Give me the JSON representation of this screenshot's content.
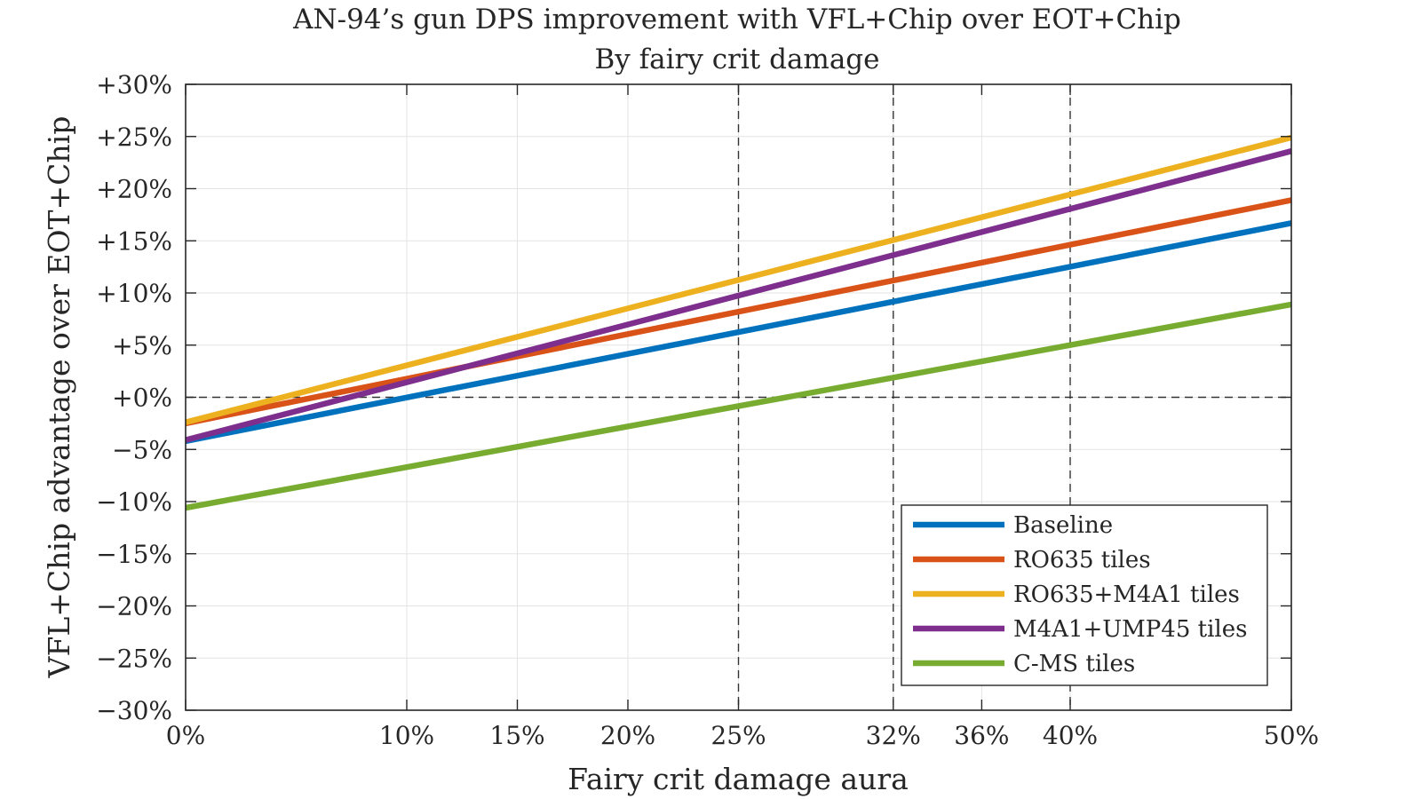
{
  "chart_data": {
    "type": "line",
    "title": "AN-94’s gun DPS improvement with VFL+Chip over EOT+Chip",
    "subtitle": "By fairy crit damage",
    "xlabel": "Fairy crit damage aura",
    "ylabel": "VFL+Chip advantage over EOT+Chip",
    "xlim": [
      0,
      50
    ],
    "ylim": [
      -30,
      30
    ],
    "x_ticks": [
      0,
      10,
      15,
      20,
      25,
      32,
      36,
      40,
      50
    ],
    "x_tick_labels": [
      "0%",
      "10%",
      "15%",
      "20%",
      "25%",
      "32%",
      "36%",
      "40%",
      "50%"
    ],
    "y_ticks": [
      30,
      25,
      20,
      15,
      10,
      5,
      0,
      -5,
      -10,
      -15,
      -20,
      -25,
      -30
    ],
    "y_tick_labels": [
      "+30%",
      "+25%",
      "+20%",
      "+15%",
      "+10%",
      "+5%",
      "+0%",
      "−5%",
      "−10%",
      "−15%",
      "−20%",
      "−25%",
      "−30%"
    ],
    "reference_lines": {
      "x": [
        25,
        32,
        40
      ],
      "y": [
        0
      ]
    },
    "grid": true,
    "legend_position": "bottom-right",
    "series": [
      {
        "name": "Baseline",
        "color": "#0072BD",
        "x": [
          0,
          50
        ],
        "y": [
          -4.2,
          16.7
        ]
      },
      {
        "name": "RO635 tiles",
        "color": "#D95319",
        "x": [
          0,
          50
        ],
        "y": [
          -2.5,
          18.9
        ]
      },
      {
        "name": "RO635+M4A1 tiles",
        "color": "#EDB120",
        "x": [
          0,
          50
        ],
        "y": [
          -2.4,
          24.9
        ]
      },
      {
        "name": "M4A1+UMP45 tiles",
        "color": "#7E2F8E",
        "x": [
          0,
          50
        ],
        "y": [
          -4.1,
          23.6
        ]
      },
      {
        "name": "C-MS tiles",
        "color": "#77AC30",
        "x": [
          0,
          50
        ],
        "y": [
          -10.6,
          8.9
        ]
      }
    ]
  }
}
